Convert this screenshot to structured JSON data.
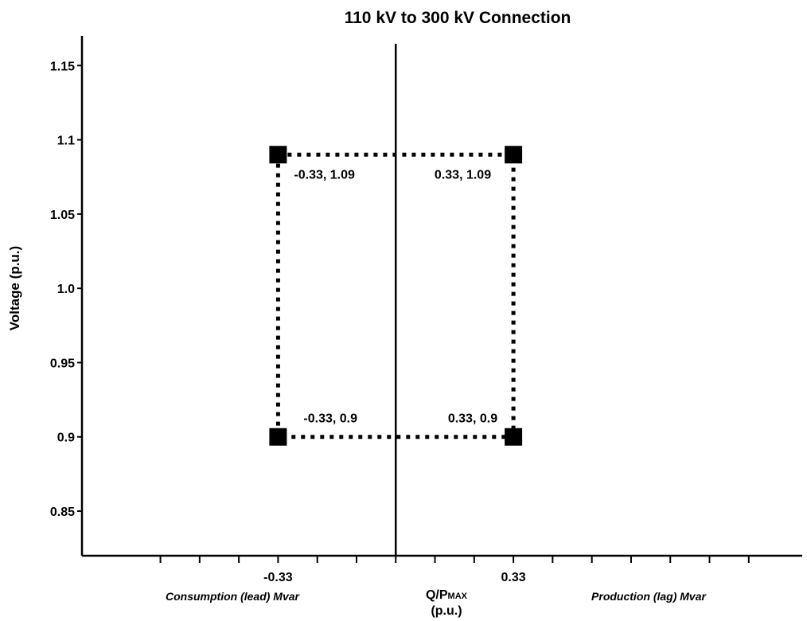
{
  "chart_data": {
    "type": "scatter",
    "title": "110 kV to 300 kV Connection",
    "ylabel": "Voltage (p.u.)",
    "xlabel_main": "Q/P",
    "xlabel_sub": "MAX",
    "xlabel_unit": "(p.u.)",
    "x_side_labels": {
      "left": "Consumption (lead) Mvar",
      "right": "Production (lag) Mvar"
    },
    "xlim": [
      -0.88,
      1.14
    ],
    "ylim": [
      0.82,
      1.17
    ],
    "y_ticks": [
      {
        "value": 0.85,
        "label": "0.85"
      },
      {
        "value": 0.9,
        "label": "0.9"
      },
      {
        "value": 0.95,
        "label": "0.95"
      },
      {
        "value": 1.0,
        "label": "1.0"
      },
      {
        "value": 1.05,
        "label": "1.05"
      },
      {
        "value": 1.1,
        "label": "1.1"
      },
      {
        "value": 1.15,
        "label": "1.15"
      }
    ],
    "x_tick_labels": [
      {
        "value": -0.33,
        "label": "-0.33"
      },
      {
        "value": 0.33,
        "label": "0.33"
      }
    ],
    "series": [
      {
        "points": [
          {
            "x": -0.33,
            "y": 1.09,
            "label": "-0.33, 1.09"
          },
          {
            "x": 0.33,
            "y": 1.09,
            "label": "0.33, 1.09"
          },
          {
            "x": 0.33,
            "y": 0.9,
            "label": "0.33, 0.9"
          },
          {
            "x": -0.33,
            "y": 0.9,
            "label": "-0.33, 0.9"
          }
        ]
      }
    ],
    "grid": false,
    "colors": {
      "marker": "#000000",
      "line": "#000000"
    }
  }
}
